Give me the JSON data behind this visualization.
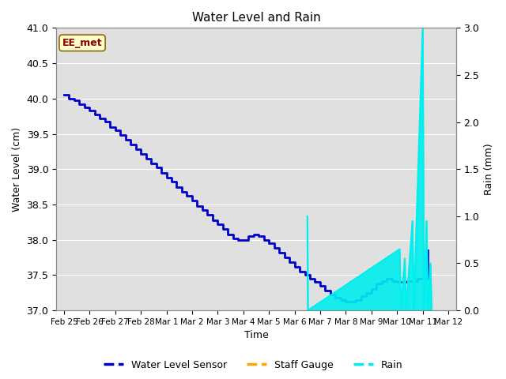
{
  "title": "Water Level and Rain",
  "xlabel": "Time",
  "ylabel_left": "Water Level (cm)",
  "ylabel_right": "Rain (mm)",
  "annotation_text": "EE_met",
  "annotation_color": "#8B0000",
  "annotation_bg": "#FFFFCC",
  "annotation_edge": "#8B6914",
  "water_level_color": "#0000CC",
  "rain_color": "#00EEEE",
  "staff_gauge_color": "#FFA500",
  "background_color": "#E0E0E0",
  "ylim_left": [
    37.0,
    41.0
  ],
  "ylim_right": [
    0.0,
    3.0
  ],
  "water_level_data": [
    40.05,
    40.0,
    39.97,
    39.92,
    39.88,
    39.83,
    39.77,
    39.72,
    39.67,
    39.6,
    39.55,
    39.48,
    39.42,
    39.35,
    39.28,
    39.22,
    39.15,
    39.08,
    39.02,
    38.95,
    38.88,
    38.82,
    38.75,
    38.68,
    38.62,
    38.55,
    38.48,
    38.42,
    38.35,
    38.28,
    38.22,
    38.15,
    38.08,
    38.02,
    38.0,
    38.0,
    38.05,
    38.08,
    38.05,
    38.0,
    37.95,
    37.88,
    37.82,
    37.75,
    37.68,
    37.62,
    37.55,
    37.5,
    37.45,
    37.4,
    37.35,
    37.28,
    37.22,
    37.18,
    37.15,
    37.12,
    37.12,
    37.15,
    37.2,
    37.25,
    37.3,
    37.38,
    37.42,
    37.45,
    37.42,
    37.4,
    37.42,
    37.45,
    37.85
  ],
  "water_level_x": [
    0.0,
    0.2,
    0.4,
    0.6,
    0.8,
    1.0,
    1.2,
    1.4,
    1.6,
    1.8,
    2.0,
    2.2,
    2.4,
    2.6,
    2.8,
    3.0,
    3.2,
    3.4,
    3.6,
    3.8,
    4.0,
    4.2,
    4.4,
    4.6,
    4.8,
    5.0,
    5.2,
    5.4,
    5.6,
    5.8,
    6.0,
    6.2,
    6.4,
    6.6,
    6.8,
    7.0,
    7.2,
    7.4,
    7.6,
    7.8,
    8.0,
    8.2,
    8.4,
    8.6,
    8.8,
    9.0,
    9.2,
    9.4,
    9.6,
    9.8,
    10.0,
    10.2,
    10.4,
    10.6,
    10.8,
    11.0,
    11.2,
    11.4,
    11.6,
    11.8,
    12.0,
    12.2,
    12.4,
    12.6,
    12.8,
    13.0,
    13.4,
    13.8,
    14.2
  ],
  "rain_events": [
    {
      "t": 9.5,
      "v": 1.0
    },
    {
      "t": 9.52,
      "v": 0.0
    },
    {
      "t": 13.1,
      "v": 0.65
    },
    {
      "t": 13.15,
      "v": 0.0
    },
    {
      "t": 13.3,
      "v": 0.55
    },
    {
      "t": 13.35,
      "v": 0.0
    },
    {
      "t": 13.6,
      "v": 0.95
    },
    {
      "t": 13.65,
      "v": 0.0
    },
    {
      "t": 14.0,
      "v": 3.0
    },
    {
      "t": 14.05,
      "v": 0.0
    },
    {
      "t": 14.15,
      "v": 0.95
    },
    {
      "t": 14.2,
      "v": 0.0
    },
    {
      "t": 14.3,
      "v": 0.5
    },
    {
      "t": 14.35,
      "v": 0.0
    }
  ],
  "xtick_labels": [
    "Feb 25",
    "Feb 26",
    "Feb 27",
    "Feb 28",
    "Mar 1",
    "Mar 2",
    "Mar 3",
    "Mar 4",
    "Mar 5",
    "Mar 6",
    "Mar 7",
    "Mar 8",
    "Mar 9",
    "Mar 10",
    "Mar 11",
    "Mar 12"
  ],
  "xtick_positions": [
    0,
    1,
    2,
    3,
    4,
    5,
    6,
    7,
    8,
    9,
    10,
    11,
    12,
    13,
    14,
    15
  ],
  "xlim": [
    -0.3,
    15.3
  ]
}
